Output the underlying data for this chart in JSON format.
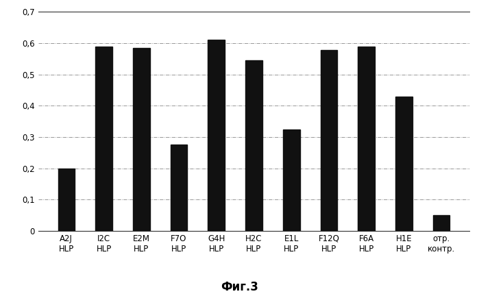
{
  "categories": [
    "A2J\nHLP",
    "I2C\nHLP",
    "E2M\nHLP",
    "F7O\nHLP",
    "G4H\nHLP",
    "H2C\nHLP",
    "E1L\nHLP",
    "F12Q\nHLP",
    "F6A\nHLP",
    "H1E\nHLP",
    "отр.\nконтр."
  ],
  "values": [
    0.2,
    0.59,
    0.585,
    0.275,
    0.61,
    0.545,
    0.325,
    0.578,
    0.59,
    0.43,
    0.05
  ],
  "bar_color": "#111111",
  "ylim": [
    0,
    0.7
  ],
  "yticks": [
    0,
    0.1,
    0.2,
    0.3,
    0.4,
    0.5,
    0.6,
    0.7
  ],
  "ytick_labels": [
    "0",
    "0,1",
    "0,2",
    "0,3",
    "0,4",
    "0,5",
    "0,6",
    "0,7"
  ],
  "grid_color": "#888888",
  "background_color": "#ffffff",
  "caption": "Фиг.3",
  "caption_fontsize": 12,
  "tick_fontsize": 8.5,
  "bar_width": 0.45
}
